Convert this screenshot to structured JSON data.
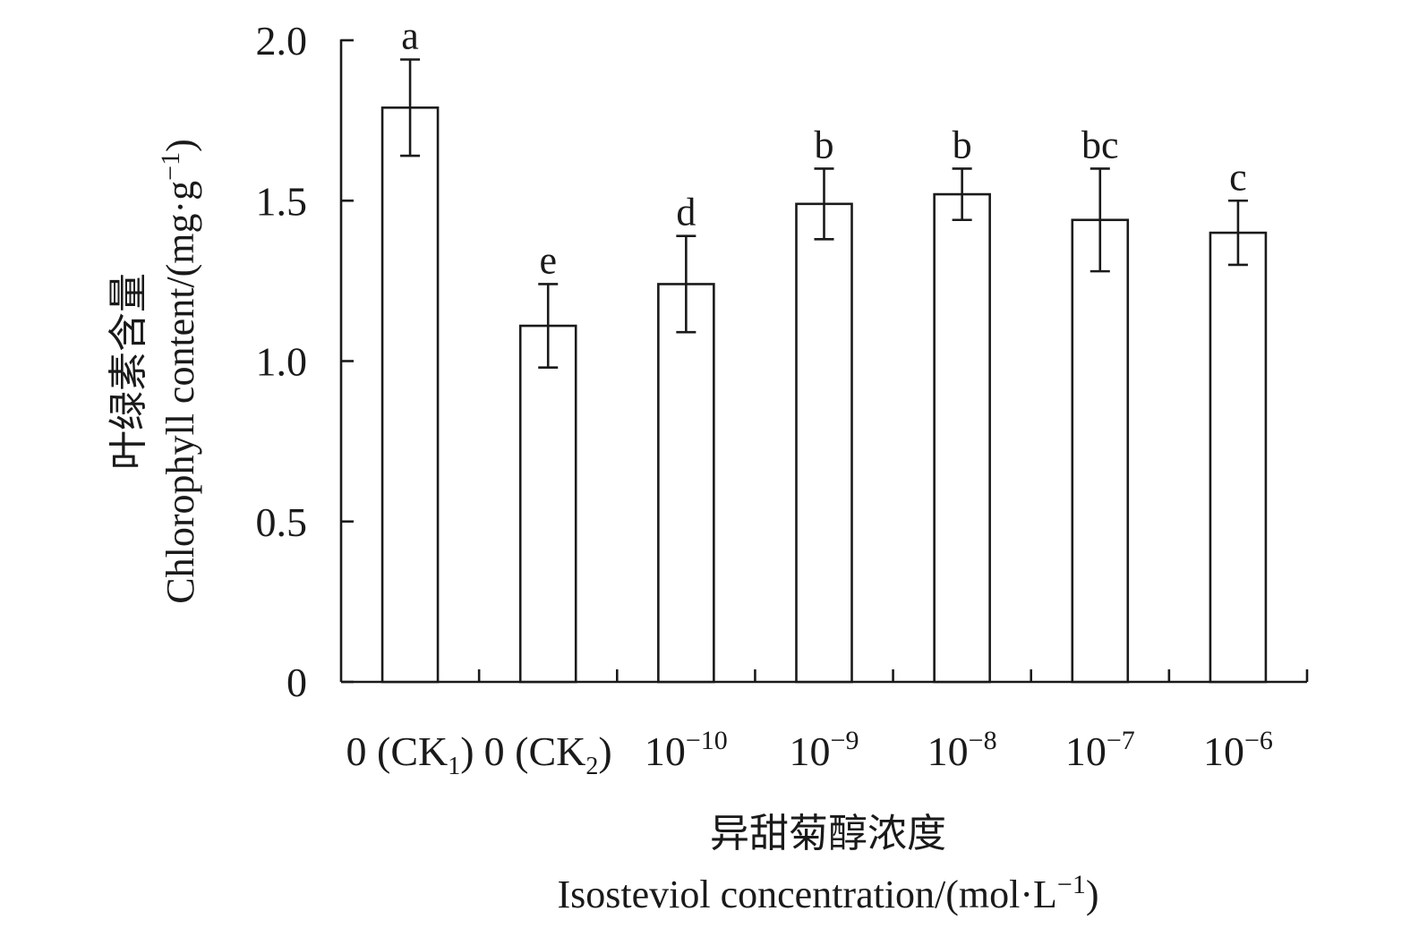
{
  "chart_data": {
    "type": "bar",
    "categories": [
      {
        "base": "0 (CK",
        "sub": "1",
        "tail": ")"
      },
      {
        "base": "0 (CK",
        "sub": "2",
        "tail": ")"
      },
      {
        "base": "10",
        "sup": "−10"
      },
      {
        "base": "10",
        "sup": "−9"
      },
      {
        "base": "10",
        "sup": "−8"
      },
      {
        "base": "10",
        "sup": "−7"
      },
      {
        "base": "10",
        "sup": "−6"
      }
    ],
    "values": [
      1.79,
      1.11,
      1.24,
      1.49,
      1.52,
      1.44,
      1.4
    ],
    "errors": [
      0.15,
      0.13,
      0.15,
      0.11,
      0.08,
      0.16,
      0.1
    ],
    "significance": [
      "a",
      "e",
      "d",
      "b",
      "b",
      "bc",
      "c"
    ],
    "ylim": [
      0,
      2.0
    ],
    "yticks": [
      {
        "value": 0,
        "label": "0"
      },
      {
        "value": 0.5,
        "label": "0.5"
      },
      {
        "value": 1.0,
        "label": "1.0"
      },
      {
        "value": 1.5,
        "label": "1.5"
      },
      {
        "value": 2.0,
        "label": "2.0"
      }
    ],
    "ylabel_cn": "叶绿素含量",
    "ylabel_en": "Chlorophyll content/(mg·g",
    "ylabel_en_sup": "−1",
    "ylabel_en_tail": ")",
    "xlabel_cn": "异甜菊醇浓度",
    "xlabel_en": "Isosteviol concentration/(mol·L",
    "xlabel_en_sup": "−1",
    "xlabel_en_tail": ")",
    "grid": false,
    "bar_fill": "#ffffff",
    "stroke_color": "#1a1a1a"
  }
}
